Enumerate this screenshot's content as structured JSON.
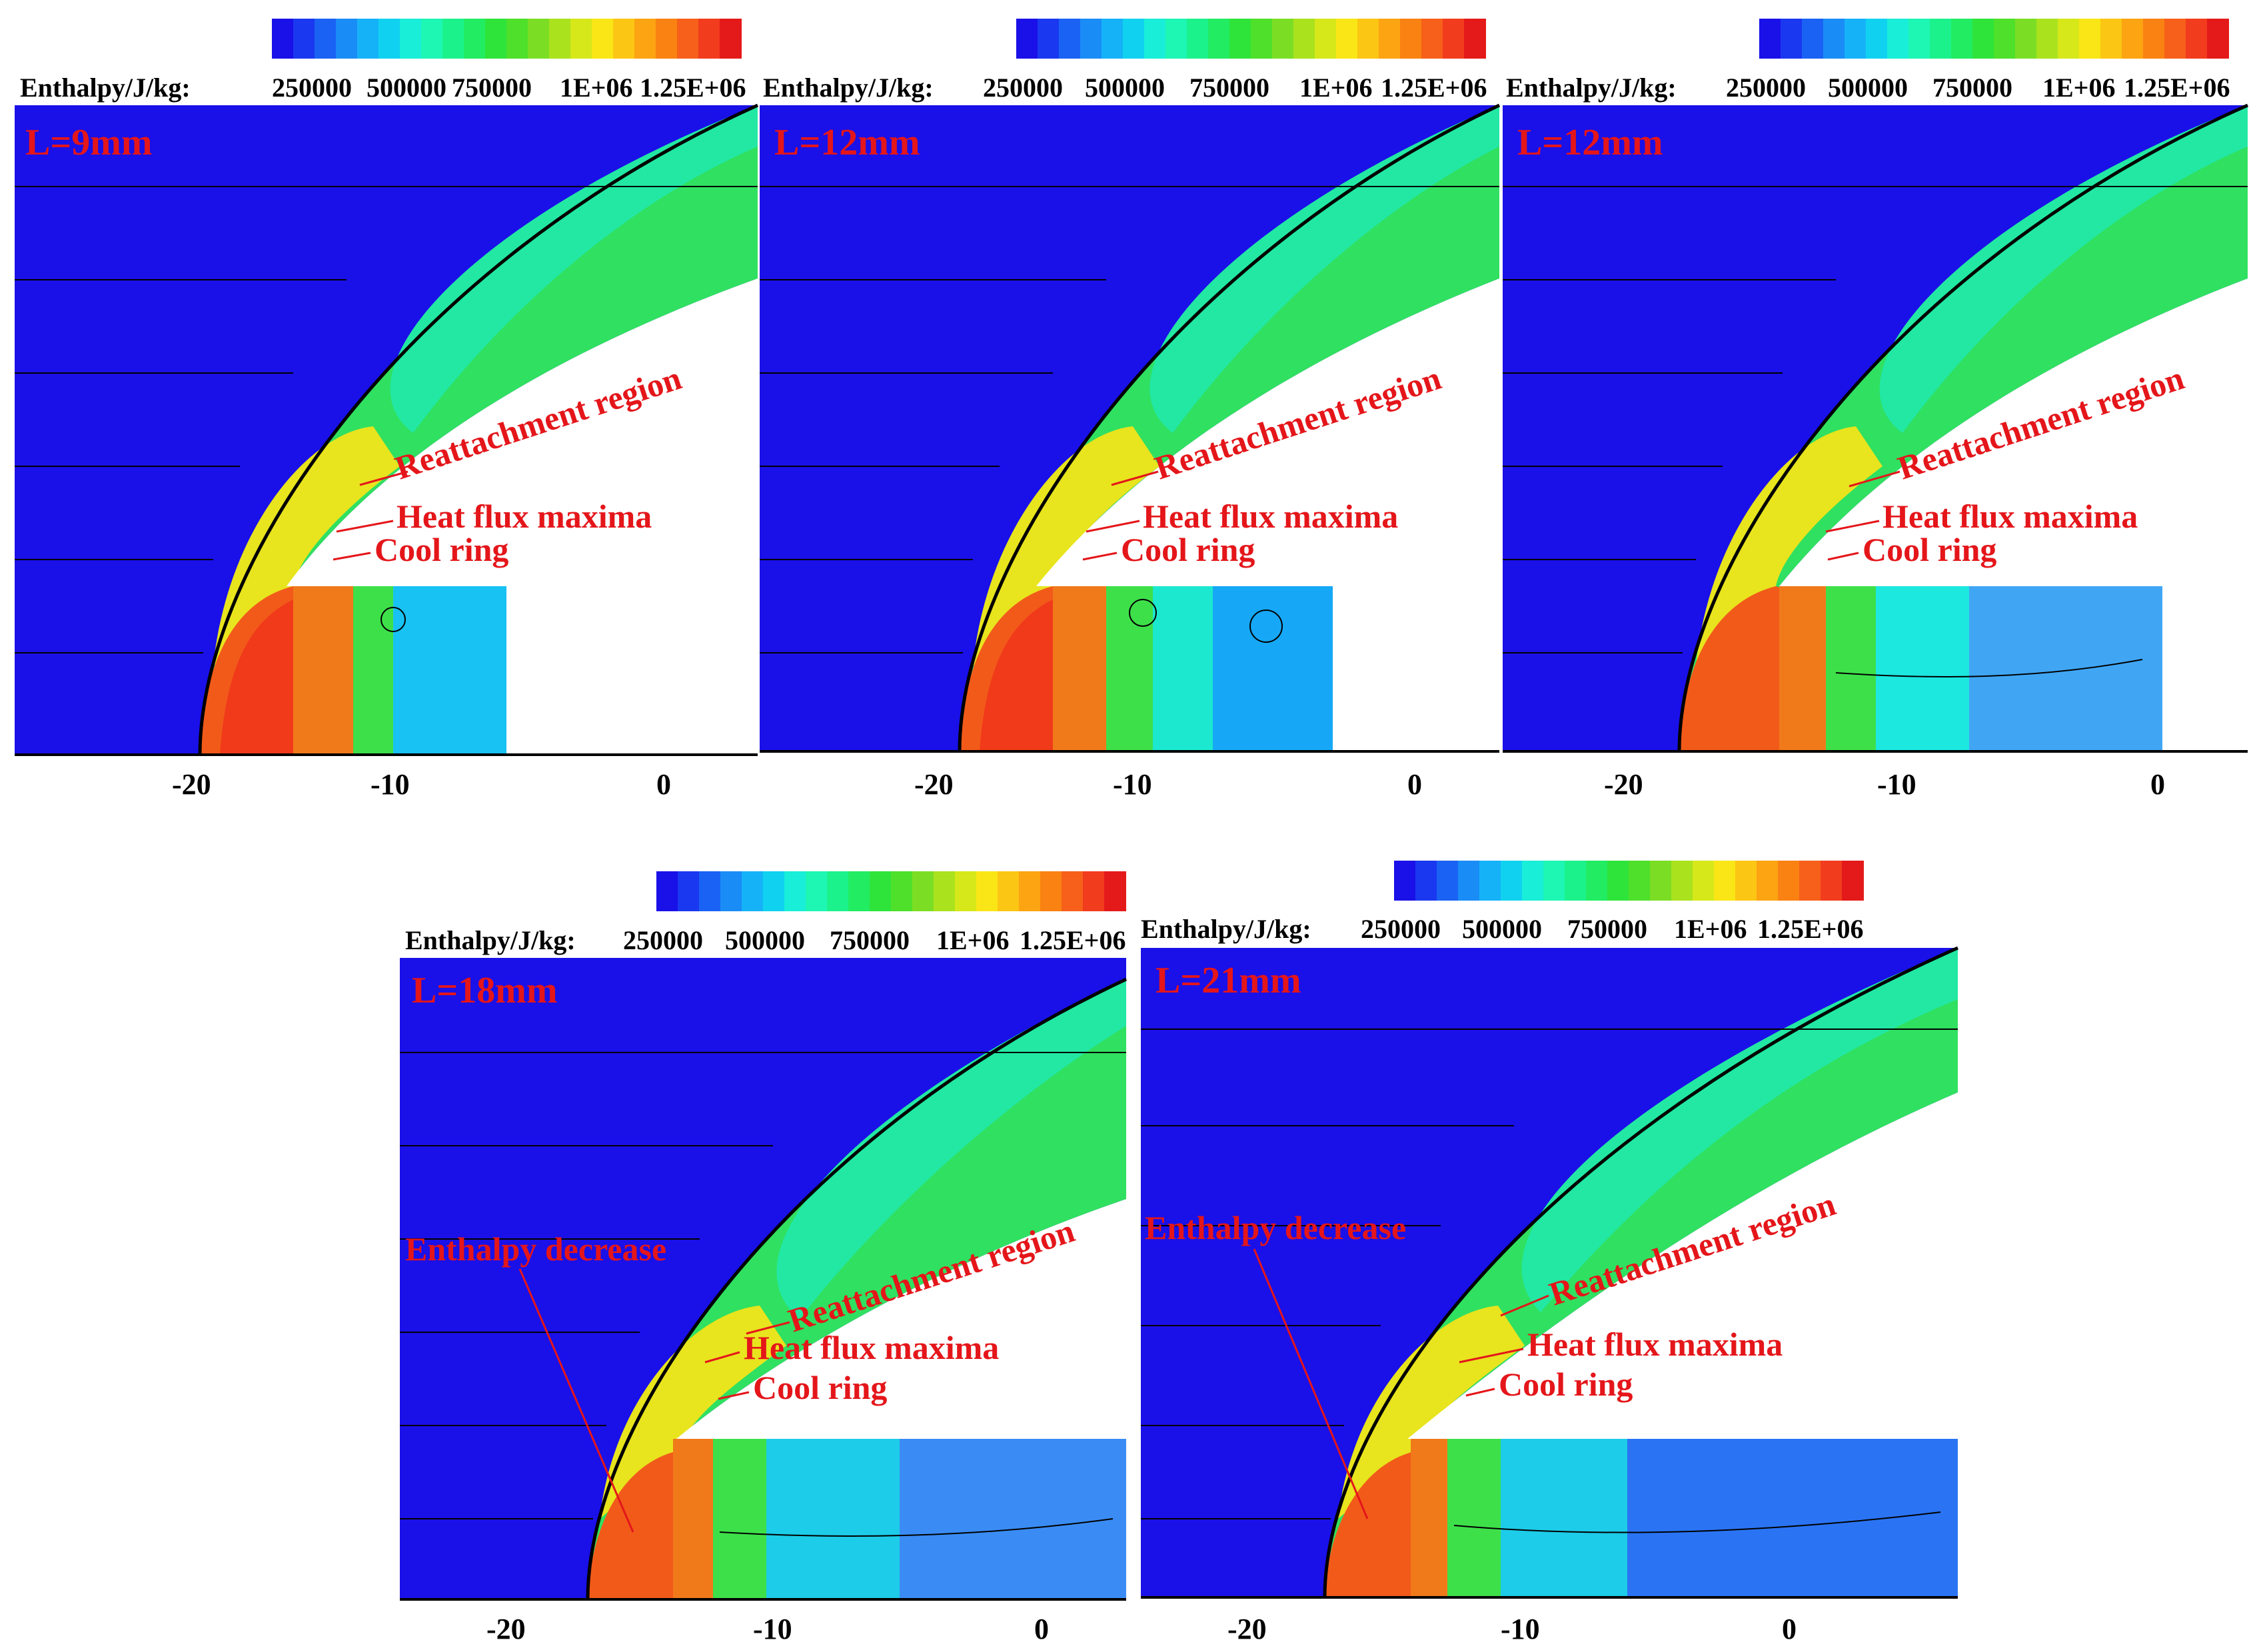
{
  "colorbar": {
    "title": "Enthalpy/J/kg:",
    "ticks": [
      "250000",
      "500000",
      "750000",
      "1E+06",
      "1.25E+06"
    ],
    "colors": [
      "#1a10e8",
      "#1a38f0",
      "#1a62f4",
      "#1a8cf6",
      "#16b2f8",
      "#10d2f0",
      "#18eed8",
      "#1ef6b4",
      "#1cf28c",
      "#22ec62",
      "#2ee43a",
      "#4ee02a",
      "#7cde24",
      "#aae21e",
      "#d6e81a",
      "#fae616",
      "#fcc614",
      "#fca412",
      "#fa8212",
      "#f6601a",
      "#f23c1e",
      "#e41a1a"
    ]
  },
  "axis": {
    "ticks": [
      "-20",
      "-10",
      "0"
    ]
  },
  "annotations": {
    "reattachment": "Reattachment region",
    "heat_flux": "Heat flux maxima",
    "cool_ring": "Cool ring",
    "enthalpy_decrease": "Enthalpy decrease"
  },
  "panels": [
    {
      "case": "L=9mm",
      "has_enthalpy_decrease": false
    },
    {
      "case": "L=12mm",
      "has_enthalpy_decrease": false
    },
    {
      "case": "L=12mm",
      "has_enthalpy_decrease": false
    },
    {
      "case": "L=18mm",
      "has_enthalpy_decrease": true
    },
    {
      "case": "L=21mm",
      "has_enthalpy_decrease": true
    }
  ]
}
